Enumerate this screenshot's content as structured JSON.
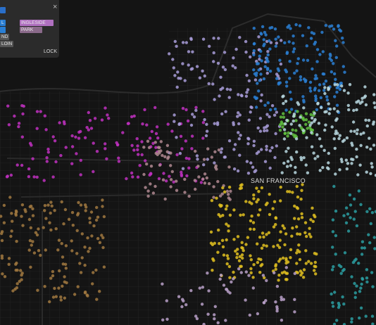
{
  "legend": {
    "left": [
      "L",
      "ND",
      "LOIN"
    ],
    "right": [
      "INGLESIDE",
      "PARK"
    ]
  },
  "lock_button": "LOCK",
  "close_button": "×",
  "map_label": "SAN FRANCISCO"
}
